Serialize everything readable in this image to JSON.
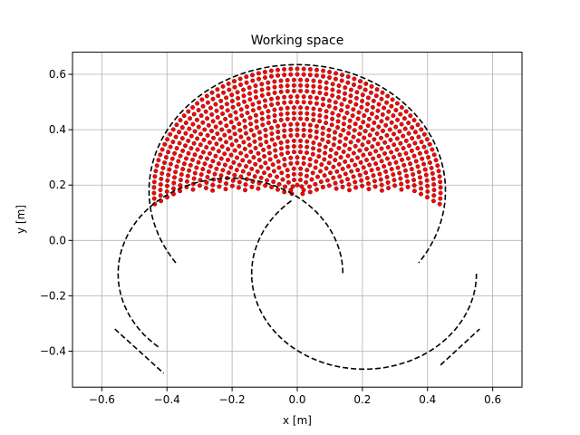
{
  "chart_data": {
    "type": "scatter",
    "title": "Working space",
    "xlabel": "x [m]",
    "ylabel": "y [m]",
    "xlim": [
      -0.69,
      0.69
    ],
    "ylim": [
      -0.53,
      0.68
    ],
    "xticks": [
      -0.6,
      -0.4,
      -0.2,
      0.0,
      0.2,
      0.4,
      0.6
    ],
    "xtick_labels": [
      "−0.6",
      "−0.4",
      "−0.2",
      "0.0",
      "0.2",
      "0.4",
      "0.6"
    ],
    "yticks": [
      -0.4,
      -0.2,
      0.0,
      0.2,
      0.4,
      0.6
    ],
    "ytick_labels": [
      "−0.4",
      "−0.2",
      "0.0",
      "0.2",
      "0.4",
      "0.6"
    ],
    "grid": true,
    "legend": "none",
    "workspace": {
      "base_point": [
        0.0,
        0.18
      ],
      "inner_radius": 0.0,
      "outer_radius": 0.455,
      "angle_range_deg": [
        -125,
        125
      ]
    },
    "series": [
      {
        "kind": "reachable-points",
        "marker": "dot",
        "color": "#ff0000",
        "edge_color": "#000000",
        "point_spacing": 0.02
      },
      {
        "kind": "boundary",
        "style": "dashed",
        "color": "#000000",
        "outer_arc": {
          "center": [
            0.0,
            0.18
          ],
          "radius": 0.455,
          "angle_range_deg": [
            -125,
            125
          ]
        },
        "inner_arcs": [
          {
            "center": [
              -0.205,
              -0.12
            ],
            "radius": 0.345,
            "angle_range_deg": [
              -140,
              90
            ]
          },
          {
            "center": [
              0.205,
              -0.12
            ],
            "radius": 0.345,
            "angle_range_deg": [
              90,
              320
            ]
          }
        ],
        "tails": [
          {
            "from": [
              -0.56,
              -0.32
            ],
            "to": [
              -0.41,
              -0.48
            ]
          },
          {
            "from": [
              0.44,
              -0.45
            ],
            "to": [
              0.56,
              -0.32
            ]
          }
        ]
      }
    ]
  }
}
